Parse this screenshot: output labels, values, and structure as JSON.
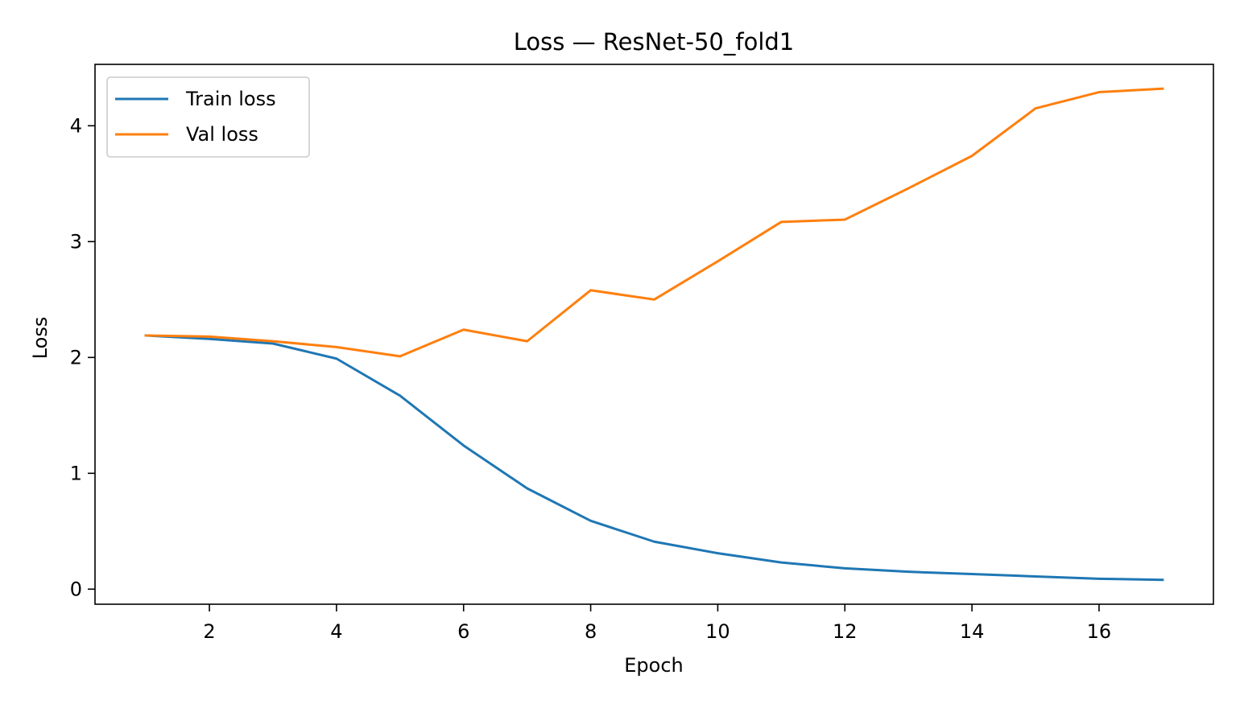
{
  "chart_data": {
    "type": "line",
    "title": "Loss — ResNet-50_fold1",
    "xlabel": "Epoch",
    "ylabel": "Loss",
    "x": [
      1,
      2,
      3,
      4,
      5,
      6,
      7,
      8,
      9,
      10,
      11,
      12,
      13,
      14,
      15,
      16,
      17
    ],
    "xlim": [
      0.2,
      17.8
    ],
    "ylim": [
      -0.13,
      4.53
    ],
    "xticks": [
      2,
      4,
      6,
      8,
      10,
      12,
      14,
      16
    ],
    "yticks": [
      0,
      1,
      2,
      3,
      4
    ],
    "grid": false,
    "legend_position": "top-left",
    "series": [
      {
        "name": "Train loss",
        "color": "#1f77b4",
        "values": [
          2.19,
          2.16,
          2.12,
          1.99,
          1.67,
          1.24,
          0.87,
          0.59,
          0.41,
          0.31,
          0.23,
          0.18,
          0.15,
          0.13,
          0.11,
          0.09,
          0.08
        ]
      },
      {
        "name": "Val loss",
        "color": "#ff7f0e",
        "values": [
          2.19,
          2.18,
          2.14,
          2.09,
          2.01,
          2.24,
          2.14,
          2.58,
          2.5,
          2.83,
          3.17,
          3.19,
          3.46,
          3.74,
          4.15,
          4.29,
          4.32
        ]
      }
    ]
  }
}
